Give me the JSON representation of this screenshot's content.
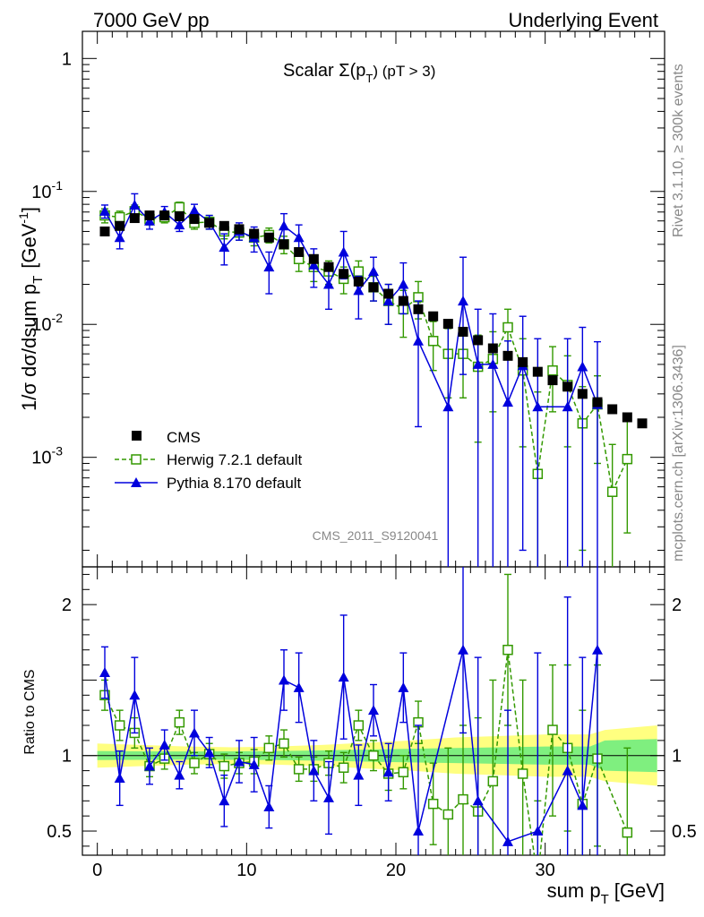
{
  "header": {
    "left": "7000 GeV pp",
    "right": "Underlying Event"
  },
  "side": {
    "rivet": "Rivet 3.1.10, ≥ 300k events",
    "mcplots": "mcplots.cern.ch [arXiv:1306.3436]"
  },
  "plot": {
    "title_main": "Scalar Σ(p",
    "title_sub": "T",
    "title_tail": ") (pT >  3)",
    "ylabel": "1/σ dσ/dsum p",
    "ylabel_sub": "T",
    "ylabel_units": "[GeV",
    "ylabel_sup": "-1",
    "ylabel_close": "]",
    "ratio_ylabel": "Ratio to CMS",
    "xlabel": "sum p",
    "xlabel_sub": "T",
    "xlabel_units": "[GeV]",
    "watermark": "CMS_2011_S9120041"
  },
  "legend": {
    "cms": "CMS",
    "herwig": "Herwig 7.2.1 default",
    "pythia": "Pythia 8.170 default"
  },
  "colors": {
    "cms": "#000000",
    "herwig": "#339900",
    "pythia": "#0000dd",
    "band_inner": "#7fef7f",
    "band_outer": "#ffff80"
  },
  "chart_data": {
    "type": "scatter",
    "x_range": [
      -1,
      38
    ],
    "x_ticks": [
      0,
      10,
      20,
      30
    ],
    "y_range_log": [
      0.00015,
      1.6
    ],
    "y_ticks": [
      {
        "v": 1,
        "m": "1",
        "e": ""
      },
      {
        "v": 0.1,
        "m": "10",
        "e": "-1"
      },
      {
        "v": 0.01,
        "m": "10",
        "e": "-2"
      },
      {
        "v": 0.001,
        "m": "10",
        "e": "-3"
      }
    ],
    "ratio_range": [
      0.34,
      2.25
    ],
    "ratio_ticks": [
      {
        "v": 0.5,
        "l": "0.5"
      },
      {
        "v": 1,
        "l": "1"
      },
      {
        "v": 2,
        "l": "2"
      }
    ],
    "cms": {
      "x": [
        0.5,
        1.5,
        2.5,
        3.5,
        4.5,
        5.5,
        6.5,
        7.5,
        8.5,
        9.5,
        10.5,
        11.5,
        12.5,
        13.5,
        14.5,
        15.5,
        16.5,
        17.5,
        18.5,
        19.5,
        20.5,
        21.5,
        22.5,
        23.5,
        24.5,
        25.5,
        26.5,
        27.5,
        28.5,
        29.5,
        30.5,
        31.5,
        32.5,
        33.5,
        34.5,
        35.5,
        36.5
      ],
      "y": [
        0.05,
        0.055,
        0.063,
        0.066,
        0.066,
        0.065,
        0.062,
        0.058,
        0.055,
        0.052,
        0.048,
        0.045,
        0.04,
        0.035,
        0.031,
        0.027,
        0.024,
        0.021,
        0.019,
        0.017,
        0.015,
        0.013,
        0.0115,
        0.0101,
        0.0088,
        0.0076,
        0.0066,
        0.0058,
        0.0052,
        0.0044,
        0.0038,
        0.0034,
        0.003,
        0.0026,
        0.0023,
        0.002,
        0.0018
      ]
    },
    "herwig": {
      "x": [
        0.5,
        1.5,
        2.5,
        3.5,
        4.5,
        5.5,
        6.5,
        7.5,
        8.5,
        9.5,
        10.5,
        11.5,
        12.5,
        13.5,
        14.5,
        15.5,
        16.5,
        17.5,
        18.5,
        19.5,
        20.5,
        21.5,
        22.5,
        23.5,
        24.5,
        25.5,
        26.5,
        27.5,
        28.5,
        29.5,
        30.5,
        31.5,
        32.5,
        33.5,
        34.5,
        35.5
      ],
      "y": [
        0.066,
        0.064,
        0.071,
        0.062,
        0.064,
        0.076,
        0.058,
        0.059,
        0.05,
        0.049,
        0.045,
        0.047,
        0.04,
        0.031,
        0.027,
        0.025,
        0.022,
        0.025,
        0.019,
        0.015,
        0.013,
        0.016,
        0.0075,
        0.006,
        0.006,
        0.0048,
        0.0055,
        0.0095,
        0.0045,
        0.00075,
        0.0045,
        0.0035,
        0.0018,
        0.0025,
        0.00055,
        0.00097
      ],
      "up": [
        0.074,
        0.071,
        0.079,
        0.068,
        0.07,
        0.083,
        0.064,
        0.066,
        0.056,
        0.055,
        0.051,
        0.053,
        0.046,
        0.037,
        0.033,
        0.03,
        0.027,
        0.03,
        0.023,
        0.02,
        0.018,
        0.021,
        0.0105,
        0.0093,
        0.0093,
        0.0083,
        0.0088,
        0.013,
        0.0078,
        0.0031,
        0.0068,
        0.0058,
        0.0034,
        0.0041,
        0.00125,
        0.00195
      ],
      "dn": [
        0.058,
        0.057,
        0.063,
        0.056,
        0.058,
        0.069,
        0.052,
        0.052,
        0.044,
        0.043,
        0.039,
        0.041,
        0.034,
        0.025,
        0.021,
        0.02,
        0.017,
        0.02,
        0.015,
        0.01,
        0.008,
        0.011,
        0.0045,
        0.0028,
        0.0028,
        0.0013,
        0.0022,
        0.006,
        0.0012,
        0.0001,
        0.0022,
        0.0012,
        0.0002,
        0.0009,
        0.0001,
        0.00027
      ]
    },
    "pythia": {
      "x": [
        0.5,
        1.5,
        2.5,
        3.5,
        4.5,
        5.5,
        6.5,
        7.5,
        8.5,
        9.5,
        10.5,
        11.5,
        12.5,
        13.5,
        14.5,
        15.5,
        16.5,
        17.5,
        18.5,
        19.5,
        20.5,
        21.5,
        23.5,
        24.5,
        25.5,
        26.5,
        27.5,
        28.5,
        29.5,
        31.5,
        32.5,
        33.5
      ],
      "y": [
        0.071,
        0.045,
        0.079,
        0.06,
        0.07,
        0.056,
        0.072,
        0.059,
        0.038,
        0.05,
        0.045,
        0.027,
        0.055,
        0.045,
        0.028,
        0.02,
        0.035,
        0.018,
        0.025,
        0.015,
        0.02,
        0.0075,
        0.0024,
        0.015,
        0.005,
        0.005,
        0.0026,
        0.0049,
        0.0024,
        0.0024,
        0.0048,
        0.0025
      ],
      "up": [
        0.079,
        0.053,
        0.096,
        0.069,
        0.077,
        0.062,
        0.08,
        0.066,
        0.048,
        0.058,
        0.054,
        0.035,
        0.068,
        0.056,
        0.037,
        0.026,
        0.05,
        0.023,
        0.032,
        0.02,
        0.029,
        0.015,
        0.0105,
        0.032,
        0.013,
        0.012,
        0.0075,
        0.0115,
        0.0078,
        0.0078,
        0.0095,
        0.0074
      ],
      "dn": [
        0.063,
        0.037,
        0.065,
        0.052,
        0.063,
        0.05,
        0.063,
        0.052,
        0.028,
        0.043,
        0.035,
        0.017,
        0.043,
        0.033,
        0.019,
        0.013,
        0.022,
        0.011,
        0.015,
        0.01,
        0.012,
        0.0017,
        0.0001,
        0.0042,
        0.0001,
        0.0001,
        0.0001,
        0.0002,
        0.0001,
        0.0001,
        0.0001,
        0.0001
      ]
    },
    "herwig_ratio": {
      "x": [
        0.5,
        1.5,
        2.5,
        3.5,
        4.5,
        5.5,
        6.5,
        7.5,
        8.5,
        9.5,
        10.5,
        11.5,
        12.5,
        13.5,
        14.5,
        15.5,
        16.5,
        17.5,
        18.5,
        19.5,
        20.5,
        21.5,
        22.5,
        23.5,
        24.5,
        25.5,
        26.5,
        27.5,
        28.5,
        29.5,
        30.5,
        31.5,
        32.5,
        33.5,
        35.5
      ],
      "y": [
        1.4,
        1.2,
        1.15,
        0.93,
        0.98,
        1.22,
        0.95,
        1.01,
        0.93,
        0.95,
        0.96,
        1.05,
        1.08,
        0.91,
        0.91,
        0.95,
        0.92,
        1.2,
        1.0,
        0.88,
        0.89,
        1.22,
        0.68,
        0.61,
        0.71,
        0.63,
        0.83,
        1.7,
        0.88,
        0.18,
        1.17,
        1.05,
        0.68,
        0.98,
        0.49
      ],
      "up": [
        1.5,
        1.3,
        1.25,
        1.0,
        1.05,
        1.3,
        1.02,
        1.08,
        1.01,
        1.02,
        1.04,
        1.13,
        1.17,
        0.99,
        0.99,
        1.03,
        1.02,
        1.3,
        1.1,
        0.99,
        1.0,
        1.36,
        0.95,
        1.05,
        1.2,
        1.25,
        1.5,
        2.2,
        1.5,
        0.7,
        1.6,
        1.6,
        1.3,
        1.6,
        1.05
      ],
      "dn": [
        1.3,
        1.1,
        1.05,
        0.86,
        0.91,
        1.14,
        0.88,
        0.94,
        0.85,
        0.88,
        0.88,
        0.97,
        0.99,
        0.83,
        0.83,
        0.87,
        0.82,
        1.1,
        0.9,
        0.77,
        0.78,
        1.08,
        0.41,
        0.2,
        0.2,
        0.2,
        0.2,
        1.2,
        0.2,
        0.2,
        0.6,
        0.5,
        0.2,
        0.4,
        0.2
      ]
    },
    "pythia_ratio": {
      "x": [
        0.5,
        1.5,
        2.5,
        3.5,
        4.5,
        5.5,
        6.5,
        7.5,
        8.5,
        9.5,
        10.5,
        11.5,
        12.5,
        13.5,
        14.5,
        15.5,
        16.5,
        17.5,
        18.5,
        19.5,
        20.5,
        21.5,
        24.5,
        25.5,
        27.5,
        29.5,
        31.5,
        32.5,
        33.5
      ],
      "y": [
        1.55,
        0.85,
        1.4,
        0.93,
        1.07,
        0.87,
        1.15,
        1.02,
        0.7,
        0.96,
        0.94,
        0.66,
        1.5,
        1.45,
        0.9,
        0.72,
        1.52,
        0.87,
        1.3,
        0.89,
        1.45,
        0.5,
        1.7,
        0.7,
        0.43,
        0.5,
        0.9,
        0.67,
        1.7
      ],
      "up": [
        1.72,
        1.03,
        1.65,
        1.05,
        1.17,
        0.96,
        1.3,
        1.12,
        0.87,
        1.1,
        1.12,
        0.8,
        1.7,
        1.68,
        1.1,
        0.96,
        1.93,
        1.07,
        1.47,
        1.08,
        1.68,
        1.2,
        2.25,
        1.65,
        1.3,
        1.68,
        2.05,
        1.65,
        2.4
      ],
      "dn": [
        1.38,
        0.67,
        1.15,
        0.81,
        0.97,
        0.78,
        1.0,
        0.92,
        0.53,
        0.82,
        0.76,
        0.52,
        1.3,
        1.22,
        0.7,
        0.48,
        1.11,
        0.67,
        1.13,
        0.7,
        1.22,
        0.1,
        1.15,
        0.1,
        0.1,
        0.1,
        0.1,
        0.1,
        0.1
      ]
    },
    "band": {
      "x": [
        0,
        3,
        6,
        9,
        12,
        15,
        18,
        21,
        24,
        27,
        30,
        33,
        34,
        37.5
      ],
      "inner_half": [
        0.03,
        0.028,
        0.027,
        0.028,
        0.03,
        0.034,
        0.04,
        0.045,
        0.05,
        0.055,
        0.06,
        0.06,
        0.1,
        0.11
      ],
      "outer_half": [
        0.08,
        0.07,
        0.06,
        0.055,
        0.06,
        0.07,
        0.085,
        0.1,
        0.12,
        0.13,
        0.14,
        0.14,
        0.17,
        0.2
      ]
    }
  }
}
